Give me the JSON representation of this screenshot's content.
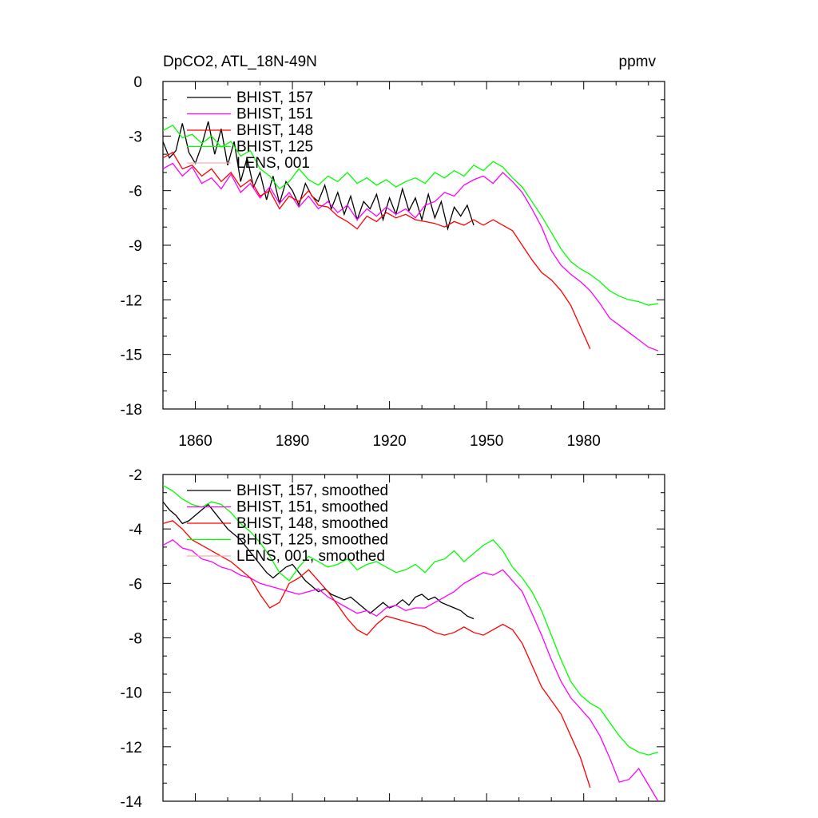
{
  "figure": {
    "title_left": "DpCO2, ATL_18N-49N",
    "title_right": "ppmv"
  },
  "chart_data": [
    {
      "type": "line",
      "title": "DpCO2, ATL_18N-49N",
      "unit_label": "ppmv",
      "xlim": [
        1850,
        2005
      ],
      "ylim": [
        -18,
        0
      ],
      "xticks": [
        1860,
        1890,
        1920,
        1950,
        1980
      ],
      "yticks": [
        0,
        -3,
        -6,
        -9,
        -12,
        -15,
        -18
      ],
      "ytick_labels": [
        "0",
        "-3",
        "-6",
        "-9",
        "-12",
        "-15",
        "-18"
      ],
      "legend_position": "top-left",
      "series": [
        {
          "name": "BHIST, 157",
          "color": "#000000",
          "x": [
            1850,
            1852,
            1854,
            1856,
            1858,
            1860,
            1862,
            1864,
            1866,
            1868,
            1870,
            1872,
            1874,
            1876,
            1878,
            1880,
            1882,
            1884,
            1886,
            1888,
            1890,
            1892,
            1894,
            1896,
            1898,
            1900,
            1902,
            1904,
            1906,
            1908,
            1910,
            1912,
            1914,
            1916,
            1918,
            1920,
            1922,
            1924,
            1926,
            1928,
            1930,
            1932,
            1934,
            1936,
            1938,
            1940,
            1942,
            1944,
            1946
          ],
          "y": [
            -3.3,
            -4.2,
            -3.8,
            -2.3,
            -3.9,
            -4.5,
            -3.5,
            -2.2,
            -4.0,
            -2.6,
            -4.6,
            -3.3,
            -5.5,
            -4.2,
            -5.8,
            -5.0,
            -6.5,
            -5.2,
            -6.7,
            -5.5,
            -6.0,
            -6.8,
            -5.6,
            -6.3,
            -6.6,
            -5.7,
            -7.0,
            -6.1,
            -7.3,
            -6.3,
            -7.6,
            -6.6,
            -7.0,
            -6.2,
            -7.6,
            -6.4,
            -7.3,
            -5.9,
            -7.1,
            -6.4,
            -7.6,
            -6.2,
            -7.5,
            -6.6,
            -8.1,
            -6.9,
            -7.4,
            -6.8,
            -7.9
          ]
        },
        {
          "name": "BHIST, 151",
          "color": "#ff00ff",
          "x": [
            1850,
            1853,
            1856,
            1859,
            1862,
            1865,
            1868,
            1871,
            1874,
            1877,
            1880,
            1883,
            1886,
            1889,
            1892,
            1895,
            1898,
            1901,
            1904,
            1907,
            1910,
            1913,
            1916,
            1919,
            1922,
            1925,
            1928,
            1931,
            1934,
            1937,
            1940,
            1943,
            1946,
            1949,
            1952,
            1955,
            1958,
            1961,
            1964,
            1967,
            1970,
            1973,
            1976,
            1979,
            1982,
            1985,
            1988,
            1991,
            1994,
            1997,
            2000,
            2003
          ],
          "y": [
            -4.8,
            -4.5,
            -5.2,
            -4.7,
            -5.6,
            -5.3,
            -5.9,
            -5.1,
            -6.1,
            -5.6,
            -6.4,
            -5.8,
            -6.7,
            -6.1,
            -6.9,
            -6.3,
            -7.0,
            -6.6,
            -7.2,
            -6.8,
            -7.6,
            -7.0,
            -7.4,
            -6.9,
            -7.3,
            -7.0,
            -7.5,
            -6.8,
            -6.6,
            -6.1,
            -6.3,
            -5.7,
            -5.4,
            -5.2,
            -5.6,
            -5.0,
            -5.5,
            -6.1,
            -7.0,
            -8.0,
            -9.3,
            -10.1,
            -10.6,
            -11.0,
            -11.5,
            -12.2,
            -13.0,
            -13.4,
            -13.8,
            -14.2,
            -14.6,
            -14.8
          ]
        },
        {
          "name": "BHIST, 148",
          "color": "#ff0000",
          "x": [
            1850,
            1853,
            1856,
            1859,
            1862,
            1865,
            1868,
            1871,
            1874,
            1877,
            1880,
            1883,
            1886,
            1889,
            1892,
            1895,
            1898,
            1901,
            1904,
            1907,
            1910,
            1913,
            1916,
            1919,
            1922,
            1925,
            1928,
            1931,
            1934,
            1937,
            1940,
            1943,
            1946,
            1949,
            1952,
            1955,
            1958,
            1961,
            1964,
            1967,
            1970,
            1973,
            1976,
            1979,
            1982
          ],
          "y": [
            -4.2,
            -3.9,
            -4.8,
            -4.6,
            -5.2,
            -4.8,
            -5.5,
            -5.0,
            -5.8,
            -5.4,
            -6.3,
            -6.0,
            -7.0,
            -6.3,
            -6.6,
            -6.0,
            -6.8,
            -6.9,
            -7.4,
            -7.7,
            -8.1,
            -7.4,
            -7.7,
            -7.2,
            -7.5,
            -7.3,
            -7.6,
            -7.7,
            -7.8,
            -8.0,
            -7.7,
            -7.9,
            -7.6,
            -7.9,
            -7.6,
            -7.9,
            -8.2,
            -9.0,
            -9.8,
            -10.5,
            -10.9,
            -11.5,
            -12.3,
            -13.5,
            -14.7
          ]
        },
        {
          "name": "BHIST, 125",
          "color": "#00ff00",
          "x": [
            1850,
            1853,
            1856,
            1859,
            1862,
            1865,
            1868,
            1871,
            1874,
            1877,
            1880,
            1883,
            1886,
            1889,
            1892,
            1895,
            1898,
            1901,
            1904,
            1907,
            1910,
            1913,
            1916,
            1919,
            1922,
            1925,
            1928,
            1931,
            1934,
            1937,
            1940,
            1943,
            1946,
            1949,
            1952,
            1955,
            1958,
            1961,
            1964,
            1967,
            1970,
            1973,
            1976,
            1979,
            1982,
            1985,
            1988,
            1991,
            1994,
            1997,
            2000,
            2003
          ],
          "y": [
            -2.7,
            -2.4,
            -3.1,
            -2.9,
            -3.4,
            -3.0,
            -3.6,
            -3.3,
            -4.1,
            -3.8,
            -4.8,
            -5.2,
            -5.9,
            -5.5,
            -4.8,
            -5.4,
            -5.7,
            -5.2,
            -5.5,
            -5.0,
            -5.6,
            -5.3,
            -5.7,
            -5.4,
            -5.8,
            -5.5,
            -5.3,
            -5.6,
            -5.0,
            -5.3,
            -4.9,
            -5.2,
            -4.6,
            -4.9,
            -4.4,
            -4.7,
            -5.3,
            -5.8,
            -6.6,
            -7.4,
            -8.3,
            -9.2,
            -9.9,
            -10.3,
            -10.6,
            -11.0,
            -11.5,
            -11.8,
            -12.0,
            -12.1,
            -12.3,
            -12.2
          ]
        },
        {
          "name": "LENS, 001",
          "color": "#ffaaaa",
          "x": [],
          "y": []
        }
      ]
    },
    {
      "type": "line",
      "xlim": [
        1850,
        2005
      ],
      "ylim": [
        -14,
        -2
      ],
      "xticks": [
        1860,
        1890,
        1920,
        1950,
        1980
      ],
      "yticks": [
        -2,
        -4,
        -6,
        -8,
        -10,
        -12,
        -14
      ],
      "ytick_labels": [
        "-2",
        "-4",
        "-6",
        "-8",
        "-10",
        "-12",
        "-14"
      ],
      "legend_position": "top-left",
      "series": [
        {
          "name": "BHIST, 157, smoothed",
          "color": "#000000",
          "x": [
            1850,
            1852,
            1854,
            1856,
            1858,
            1860,
            1862,
            1864,
            1866,
            1868,
            1870,
            1872,
            1874,
            1876,
            1878,
            1880,
            1882,
            1884,
            1886,
            1888,
            1890,
            1892,
            1894,
            1896,
            1898,
            1900,
            1902,
            1904,
            1906,
            1908,
            1910,
            1912,
            1914,
            1916,
            1918,
            1920,
            1922,
            1924,
            1926,
            1928,
            1930,
            1932,
            1934,
            1936,
            1938,
            1940,
            1942,
            1944,
            1946
          ],
          "y": [
            -3.0,
            -3.3,
            -3.5,
            -3.8,
            -3.7,
            -3.5,
            -3.3,
            -3.1,
            -3.4,
            -3.7,
            -4.0,
            -4.2,
            -4.4,
            -4.7,
            -5.0,
            -5.3,
            -5.6,
            -5.8,
            -5.6,
            -5.4,
            -5.3,
            -5.6,
            -5.9,
            -6.1,
            -6.3,
            -6.2,
            -6.4,
            -6.5,
            -6.6,
            -6.5,
            -6.7,
            -6.9,
            -7.1,
            -6.9,
            -6.7,
            -6.9,
            -6.8,
            -6.6,
            -6.8,
            -6.5,
            -6.4,
            -6.6,
            -6.5,
            -6.7,
            -6.8,
            -6.9,
            -7.0,
            -7.2,
            -7.3
          ]
        },
        {
          "name": "BHIST, 151, smoothed",
          "color": "#ff00ff",
          "x": [
            1850,
            1853,
            1856,
            1859,
            1862,
            1865,
            1868,
            1871,
            1874,
            1877,
            1880,
            1883,
            1886,
            1889,
            1892,
            1895,
            1898,
            1901,
            1904,
            1907,
            1910,
            1913,
            1916,
            1919,
            1922,
            1925,
            1928,
            1931,
            1934,
            1937,
            1940,
            1943,
            1946,
            1949,
            1952,
            1955,
            1958,
            1961,
            1964,
            1967,
            1970,
            1973,
            1976,
            1979,
            1982,
            1985,
            1988,
            1991,
            1994,
            1997,
            2000,
            2003
          ],
          "y": [
            -4.6,
            -4.4,
            -4.7,
            -4.8,
            -5.1,
            -5.2,
            -5.4,
            -5.5,
            -5.7,
            -5.8,
            -6.0,
            -6.1,
            -6.2,
            -6.3,
            -6.4,
            -6.3,
            -6.2,
            -6.5,
            -6.7,
            -6.9,
            -7.1,
            -7.0,
            -7.2,
            -6.9,
            -6.8,
            -7.0,
            -6.9,
            -6.9,
            -6.7,
            -6.5,
            -6.3,
            -6.0,
            -5.8,
            -5.6,
            -5.7,
            -5.5,
            -5.9,
            -6.3,
            -7.1,
            -7.9,
            -8.8,
            -9.6,
            -10.2,
            -10.6,
            -11.0,
            -11.6,
            -12.4,
            -13.3,
            -13.2,
            -12.8,
            -13.4,
            -14.0
          ]
        },
        {
          "name": "BHIST, 148, smoothed",
          "color": "#ff0000",
          "x": [
            1850,
            1853,
            1856,
            1859,
            1862,
            1865,
            1868,
            1871,
            1874,
            1877,
            1880,
            1883,
            1886,
            1889,
            1892,
            1895,
            1898,
            1901,
            1904,
            1907,
            1910,
            1913,
            1916,
            1919,
            1922,
            1925,
            1928,
            1931,
            1934,
            1937,
            1940,
            1943,
            1946,
            1949,
            1952,
            1955,
            1958,
            1961,
            1964,
            1967,
            1970,
            1973,
            1976,
            1979,
            1982
          ],
          "y": [
            -3.8,
            -3.7,
            -4.0,
            -4.4,
            -4.6,
            -4.8,
            -5.0,
            -5.2,
            -5.5,
            -5.8,
            -6.4,
            -6.9,
            -6.7,
            -6.0,
            -5.8,
            -5.5,
            -5.9,
            -6.3,
            -6.8,
            -7.3,
            -7.7,
            -7.9,
            -7.5,
            -7.2,
            -7.3,
            -7.4,
            -7.5,
            -7.6,
            -7.8,
            -7.9,
            -7.8,
            -7.6,
            -7.8,
            -7.9,
            -7.7,
            -7.5,
            -7.7,
            -8.2,
            -9.0,
            -9.8,
            -10.3,
            -10.8,
            -11.6,
            -12.4,
            -13.5
          ]
        },
        {
          "name": "BHIST, 125, smoothed",
          "color": "#00ff00",
          "x": [
            1850,
            1853,
            1856,
            1859,
            1862,
            1865,
            1868,
            1871,
            1874,
            1877,
            1880,
            1883,
            1886,
            1889,
            1892,
            1895,
            1898,
            1901,
            1904,
            1907,
            1910,
            1913,
            1916,
            1919,
            1922,
            1925,
            1928,
            1931,
            1934,
            1937,
            1940,
            1943,
            1946,
            1949,
            1952,
            1955,
            1958,
            1961,
            1964,
            1967,
            1970,
            1973,
            1976,
            1979,
            1982,
            1985,
            1988,
            1991,
            1994,
            1997,
            2000,
            2003
          ],
          "y": [
            -2.4,
            -2.6,
            -2.9,
            -3.1,
            -3.2,
            -3.0,
            -3.1,
            -3.4,
            -3.8,
            -4.1,
            -4.5,
            -5.0,
            -5.6,
            -5.9,
            -5.4,
            -5.0,
            -5.2,
            -5.4,
            -5.3,
            -5.1,
            -5.5,
            -5.3,
            -5.2,
            -5.4,
            -5.6,
            -5.5,
            -5.3,
            -5.6,
            -5.2,
            -5.1,
            -4.8,
            -5.2,
            -4.9,
            -4.6,
            -4.4,
            -4.8,
            -5.4,
            -5.8,
            -6.3,
            -7.0,
            -7.9,
            -8.8,
            -9.6,
            -10.1,
            -10.4,
            -10.6,
            -11.1,
            -11.6,
            -12.0,
            -12.2,
            -12.3,
            -12.2
          ]
        },
        {
          "name": "LENS, 001, smoothed",
          "color": "#ffaaaa",
          "x": [],
          "y": []
        }
      ]
    }
  ]
}
